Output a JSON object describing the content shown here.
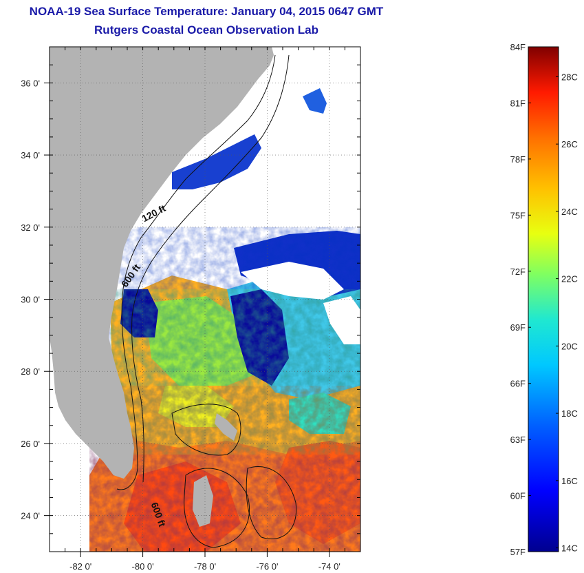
{
  "title": "NOAA-19 Sea Surface Temperature:  January 04, 2015 0647 GMT",
  "subtitle": "Rutgers Coastal Ocean Observation Lab",
  "map": {
    "lon_range": [
      -83,
      -73
    ],
    "lat_range": [
      23,
      37
    ],
    "lon_ticks": [
      {
        "value": -82,
        "label": "-82 0'"
      },
      {
        "value": -80,
        "label": "-80 0'"
      },
      {
        "value": -78,
        "label": "-78 0'"
      },
      {
        "value": -76,
        "label": "-76 0'"
      },
      {
        "value": -74,
        "label": "-74 0'"
      }
    ],
    "lat_ticks": [
      {
        "value": 36,
        "label": "36 0'"
      },
      {
        "value": 34,
        "label": "34 0'"
      },
      {
        "value": 32,
        "label": "32 0'"
      },
      {
        "value": 30,
        "label": "30 0'"
      },
      {
        "value": 28,
        "label": "28 0'"
      },
      {
        "value": 26,
        "label": "26 0'"
      },
      {
        "value": 24,
        "label": "24 0'"
      }
    ],
    "contour_labels": [
      {
        "text": "120 ft",
        "lon": -79.6,
        "lat": 32.3,
        "angle": -28
      },
      {
        "text": "600 ft",
        "lon": -80.3,
        "lat": 30.6,
        "angle": -55
      },
      {
        "text": "600 ft",
        "lon": -79.6,
        "lat": 24.0,
        "angle": 70
      }
    ],
    "colors": {
      "land": "#b3b3b3",
      "no_data": "#ffffff",
      "frame": "#000000"
    }
  },
  "colorbar": {
    "f_labels": [
      "84F",
      "81F",
      "78F",
      "75F",
      "72F",
      "69F",
      "66F",
      "63F",
      "60F",
      "57F"
    ],
    "c_labels": [
      "28C",
      "26C",
      "24C",
      "22C",
      "20C",
      "18C",
      "16C",
      "14C"
    ],
    "f_range": [
      57,
      84
    ],
    "c_values": [
      28,
      26,
      24,
      22,
      20,
      18,
      16,
      14
    ]
  }
}
